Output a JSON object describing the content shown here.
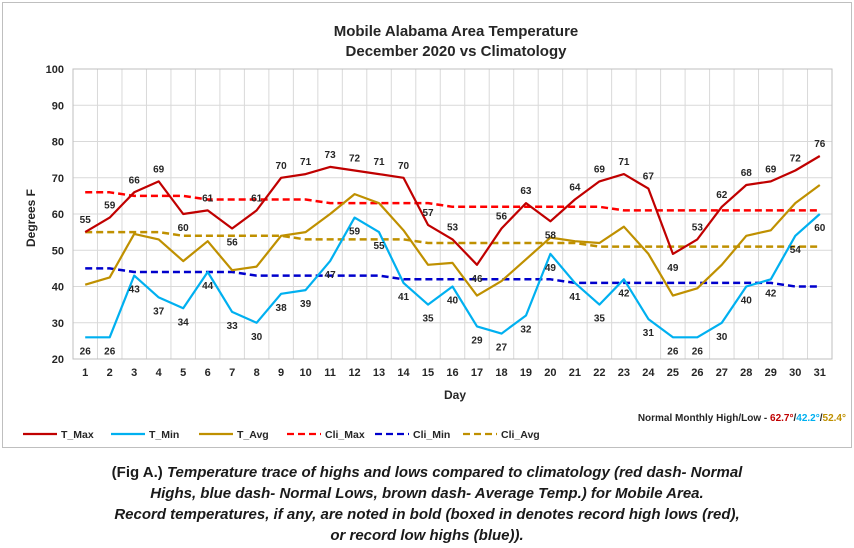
{
  "chart_data": {
    "type": "line",
    "title_line1": "Mobile Alabama Area Temperature",
    "title_line2": "December 2020 vs Climatology",
    "xlabel": "Day",
    "ylabel": "Degrees F",
    "ylim": [
      20,
      100
    ],
    "yticks": [
      20,
      30,
      40,
      50,
      60,
      70,
      80,
      90,
      100
    ],
    "x": [
      1,
      2,
      3,
      4,
      5,
      6,
      7,
      8,
      9,
      10,
      11,
      12,
      13,
      14,
      15,
      16,
      17,
      18,
      19,
      20,
      21,
      22,
      23,
      24,
      25,
      26,
      27,
      28,
      29,
      30,
      31
    ],
    "grid": true,
    "legend_position": "bottom",
    "series": [
      {
        "name": "T_Max",
        "color": "#c00000",
        "dash": false,
        "labeled": true,
        "values": [
          55,
          59,
          66,
          69,
          60,
          61,
          56,
          61,
          70,
          71,
          73,
          72,
          71,
          70,
          57,
          53,
          46,
          56,
          63,
          58,
          64,
          69,
          71,
          67,
          49,
          53,
          62,
          68,
          69,
          72,
          76
        ]
      },
      {
        "name": "T_Min",
        "color": "#00b0f0",
        "dash": false,
        "labeled": true,
        "values": [
          26,
          26,
          43,
          37,
          34,
          44,
          33,
          30,
          38,
          39,
          47,
          59,
          55,
          41,
          35,
          40,
          29,
          27,
          32,
          49,
          41,
          35,
          42,
          31,
          26,
          26,
          30,
          40,
          42,
          54,
          60
        ]
      },
      {
        "name": "T_Avg",
        "color": "#bf9000",
        "dash": false,
        "labeled": false,
        "values": [
          40.5,
          42.5,
          54.5,
          53,
          47,
          52.5,
          44.5,
          45.5,
          54,
          55,
          60,
          65.5,
          63,
          55.5,
          46,
          46.5,
          37.5,
          41.5,
          47.5,
          53.5,
          52.5,
          52,
          56.5,
          49,
          37.5,
          39.5,
          46,
          54,
          55.5,
          63,
          68
        ]
      },
      {
        "name": "Cli_Max",
        "color": "#ff0000",
        "dash": true,
        "labeled": false,
        "values": [
          66,
          66,
          65,
          65,
          65,
          64,
          64,
          64,
          64,
          64,
          63,
          63,
          63,
          63,
          63,
          62,
          62,
          62,
          62,
          62,
          62,
          62,
          61,
          61,
          61,
          61,
          61,
          61,
          61,
          61,
          61
        ]
      },
      {
        "name": "Cli_Min",
        "color": "#0000cc",
        "dash": true,
        "labeled": false,
        "values": [
          45,
          45,
          44,
          44,
          44,
          44,
          44,
          43,
          43,
          43,
          43,
          43,
          43,
          42,
          42,
          42,
          42,
          42,
          42,
          42,
          41,
          41,
          41,
          41,
          41,
          41,
          41,
          41,
          41,
          40,
          40
        ]
      },
      {
        "name": "Cli_Avg",
        "color": "#bf9000",
        "dash": true,
        "labeled": false,
        "values": [
          55,
          55,
          55,
          55,
          54,
          54,
          54,
          54,
          54,
          53,
          53,
          53,
          53,
          53,
          52,
          52,
          52,
          52,
          52,
          52,
          52,
          51,
          51,
          51,
          51,
          51,
          51,
          51,
          51,
          51,
          51
        ]
      }
    ],
    "normals": {
      "label": "Normal Monthly High/Low - ",
      "high": "62.7°",
      "sep1": "/",
      "low": "42.2°",
      "sep2": "/",
      "avg": "52.4°",
      "high_color": "#c00000",
      "low_color": "#00b0f0",
      "avg_color": "#bf9000"
    }
  },
  "caption": {
    "prefix": "(Fig A.) ",
    "line1": "Temperature trace of highs and lows compared to climatology (red dash- Normal",
    "line2": "Highs, blue dash- Normal Lows, brown dash- Average Temp.) for Mobile Area.",
    "line3": "Record temperatures, if any, are noted in bold (boxed in denotes record high lows (red),",
    "line4": "or record low highs (blue))."
  }
}
